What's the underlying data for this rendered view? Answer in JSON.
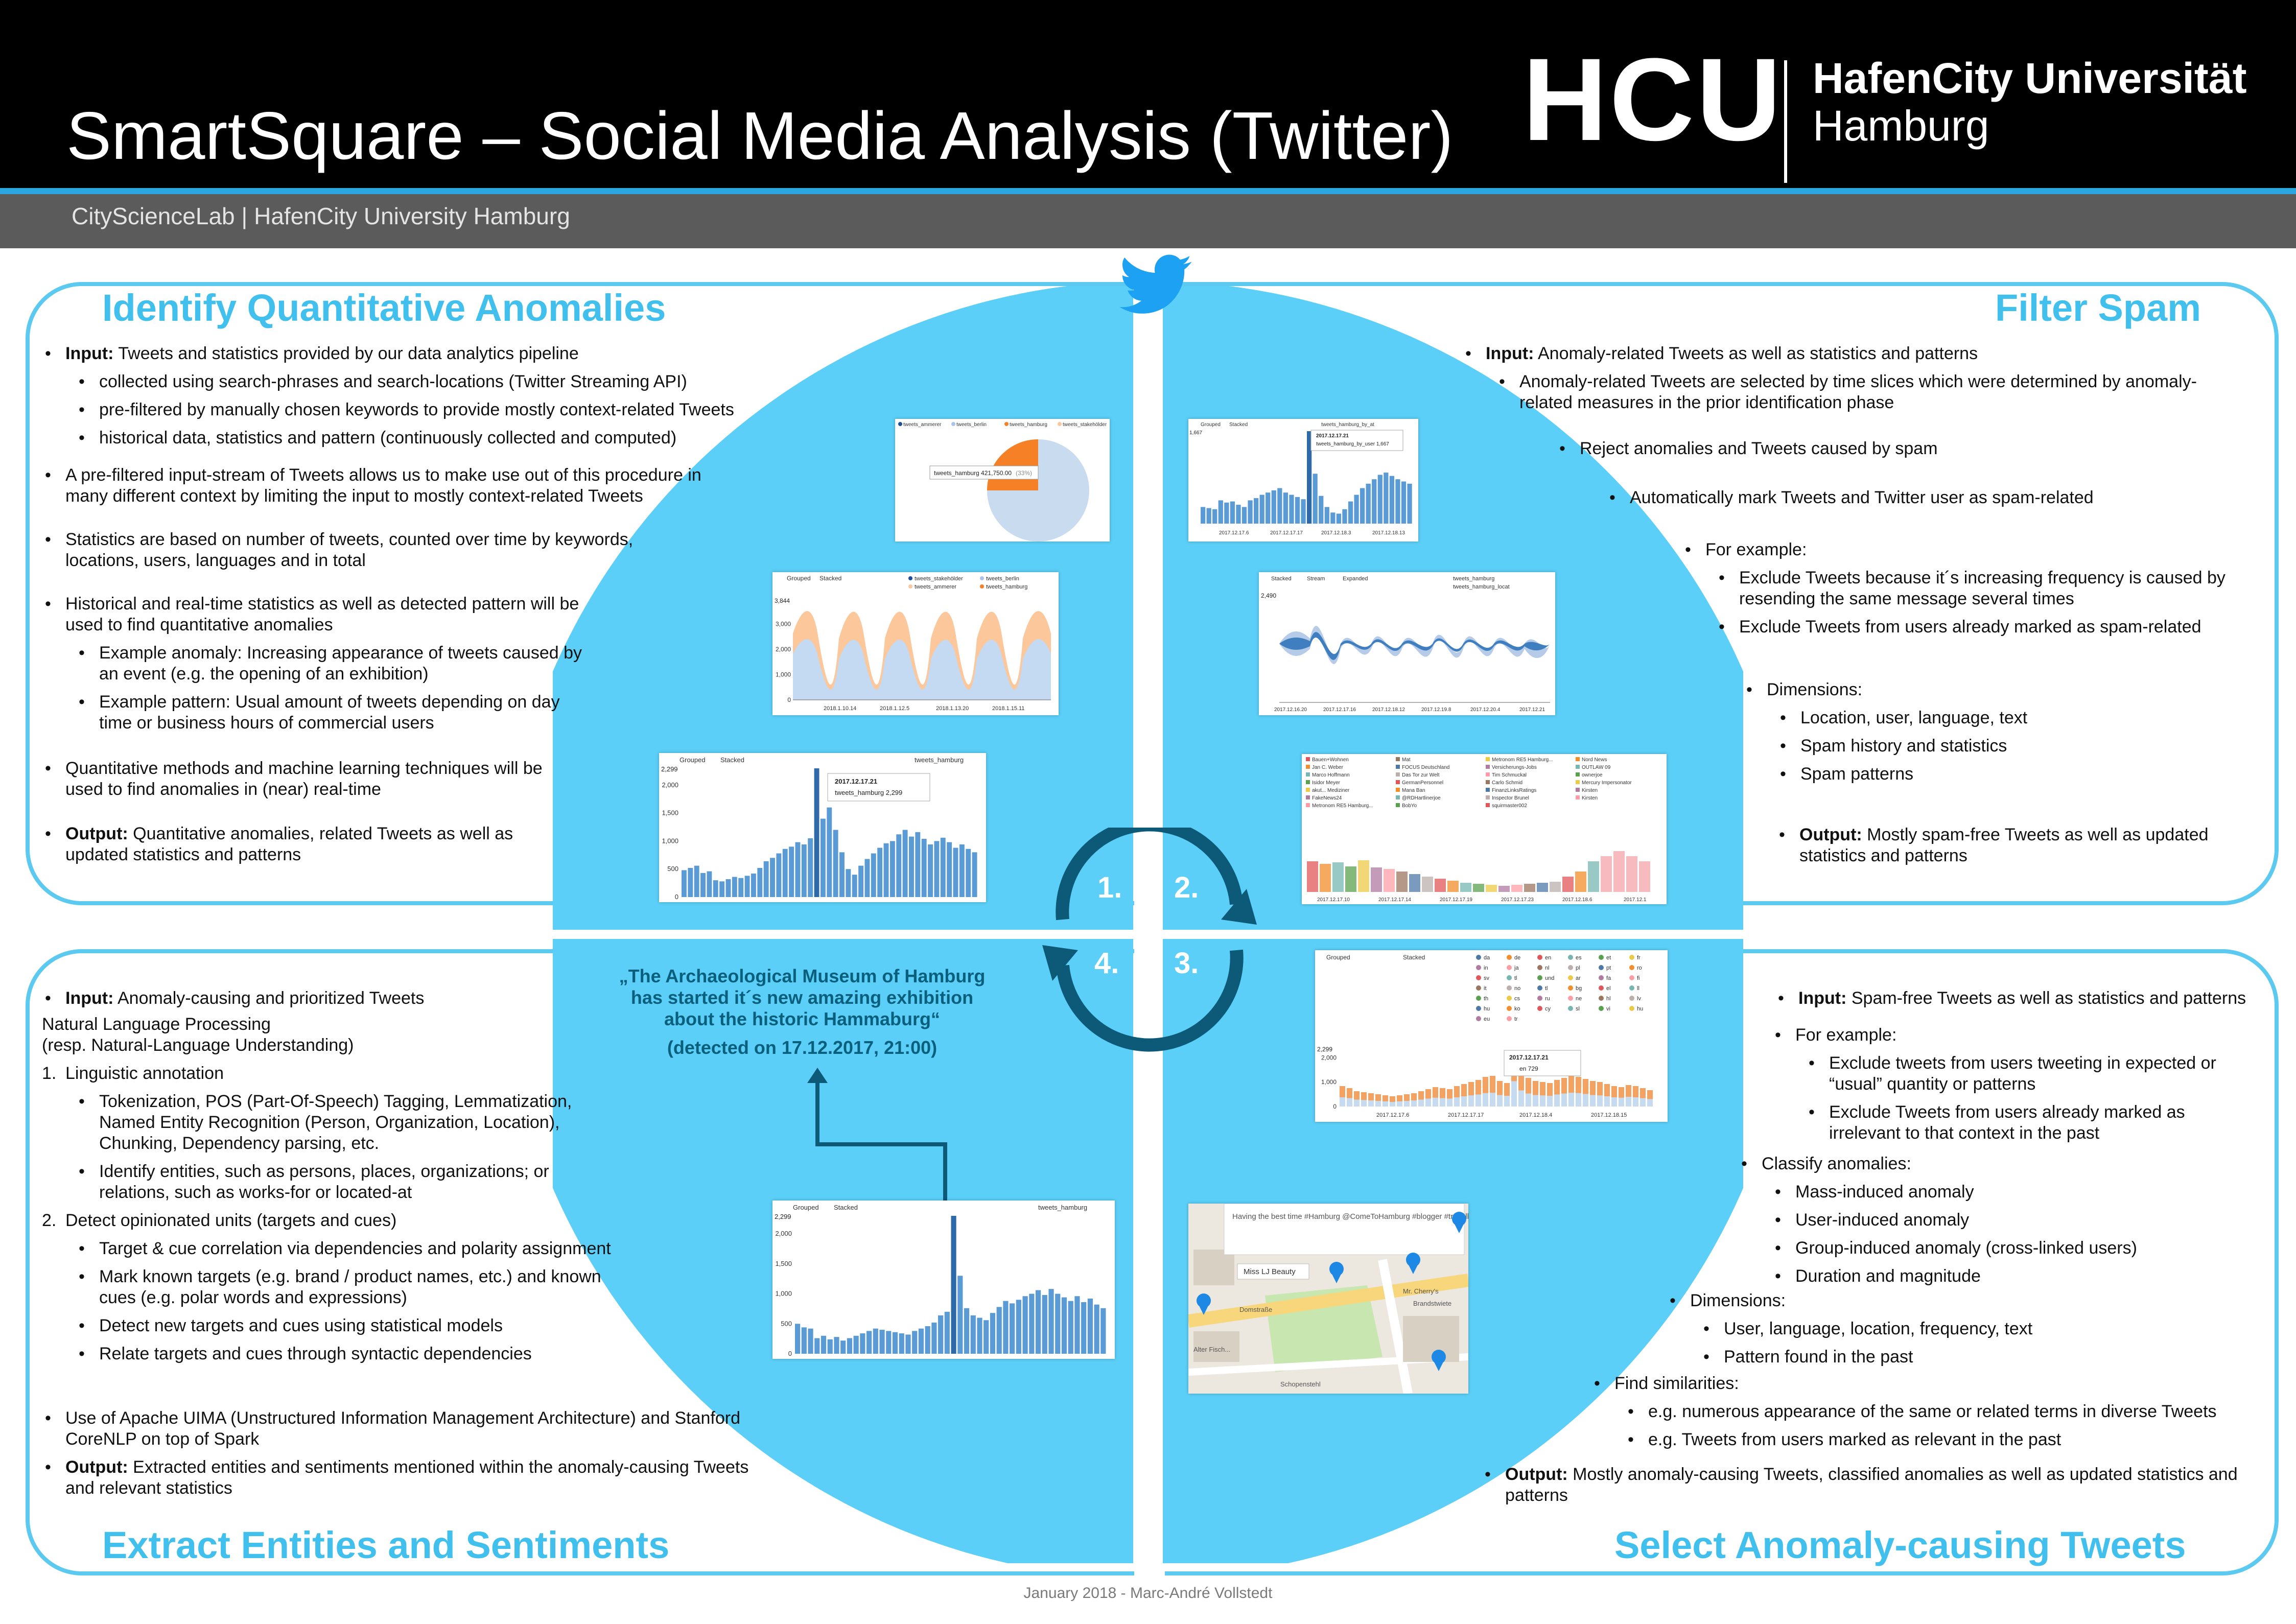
{
  "header": {
    "title": "SmartSquare – Social Media Analysis (Twitter)",
    "subtitle": "CityScienceLab | HafenCity University Hamburg",
    "logo_short": "HCU",
    "logo_line1": "HafenCity Universität",
    "logo_line2": "Hamburg"
  },
  "colors": {
    "accent": "#42c0ed",
    "circle": "#5bcff7",
    "dark_arrow": "#0c5a78",
    "header_bg": "#000000",
    "subbar_bg": "#5b5b5b"
  },
  "icons": {
    "brand": "twitter-bird-icon"
  },
  "q1": {
    "title": "Identify Quantitative Anomalies",
    "input_label": "Input:",
    "input_text": "Tweets and statistics provided by our data analytics pipeline",
    "sub1": "collected using search-phrases and search-locations (Twitter Streaming API)",
    "sub2": "pre-filtered by manually chosen keywords to provide mostly context-related Tweets",
    "sub3": "historical data, statistics and pattern (continuously collected and computed)",
    "p2": "A pre-filtered input-stream of Tweets allows us to make use out of this procedure in many different context by limiting the input to mostly context-related Tweets",
    "p3": "Statistics are based on number of tweets, counted over time by keywords, locations, users, languages and in total",
    "p4": "Historical and real-time statistics as well as detected pattern will be used to find quantitative anomalies",
    "p4a": "Example anomaly: Increasing appearance of tweets caused by an event (e.g. the opening of an exhibition)",
    "p4b": "Example pattern: Usual amount of tweets depending on day time or business hours of commercial users",
    "p5": "Quantitative methods and machine learning techniques will be used to find anomalies in (near) real-time",
    "output_label": "Output:",
    "output_text": "Quantitative anomalies, related Tweets as well as updated statistics and patterns"
  },
  "q2": {
    "title": "Filter Spam",
    "input_label": "Input:",
    "input_text": "Anomaly-related Tweets as well as statistics and patterns",
    "sub1": "Anomaly-related Tweets are selected by time slices which were determined by anomaly-related measures in the prior identification phase",
    "p2": "Reject anomalies and Tweets caused by spam",
    "p3": "Automatically mark Tweets and Twitter user as spam-related",
    "p4": "For example:",
    "p4a": "Exclude Tweets because it´s increasing frequency is caused by resending the same message several times",
    "p4b": "Exclude Tweets from users already marked as spam-related",
    "p5": "Dimensions:",
    "p5a": "Location, user, language, text",
    "p5b": "Spam history and statistics",
    "p5c": "Spam patterns",
    "output_label": "Output:",
    "output_text": "Mostly spam-free Tweets as well as updated statistics and patterns"
  },
  "q3": {
    "title": "Select Anomaly-causing Tweets",
    "input_label": "Input:",
    "input_text": "Spam-free Tweets as well as statistics and patterns",
    "p2": "For example:",
    "p2a": "Exclude tweets from users tweeting in expected or “usual” quantity or patterns",
    "p2b": "Exclude Tweets from users already marked as irrelevant to that context in the past",
    "p3": "Classify anomalies:",
    "p3a": "Mass-induced anomaly",
    "p3b": "User-induced anomaly",
    "p3c": "Group-induced anomaly (cross-linked users)",
    "p3d": "Duration and magnitude",
    "p4": "Dimensions:",
    "p4a": "User, language, location, frequency, text",
    "p4b": "Pattern found in the past",
    "p5": "Find similarities:",
    "p5a": "e.g. numerous appearance of the same or related terms in diverse Tweets",
    "p5b": "e.g. Tweets from users marked as relevant in the past",
    "output_label": "Output:",
    "output_text": "Mostly anomaly-causing Tweets, classified anomalies as well as updated statistics and patterns"
  },
  "q4": {
    "title": "Extract Entities and Sentiments",
    "input_label": "Input:",
    "input_text": "Anomaly-causing and prioritized Tweets",
    "nlp1": "Natural Language Processing",
    "nlp2": "(resp. Natural-Language Understanding)",
    "n1": "Linguistic annotation",
    "n1a": "Tokenization, POS (Part-Of-Speech) Tagging, Lemmatization, Named Entity Recognition (Person, Organization, Location), Chunking, Dependency parsing, etc.",
    "n1b": "Identify entities, such as persons, places, organizations; or relations, such as works-for or located-at",
    "n2": "Detect opinionated units (targets and cues)",
    "n2a": "Target & cue correlation via dependencies and polarity assignment",
    "n2b": "Mark known targets (e.g. brand / product names, etc.) and known cues (e.g. polar words and expressions)",
    "n2c": "Detect new targets and cues using statistical models",
    "n2d": "Relate targets and cues through syntactic dependencies",
    "p3": "Use of Apache UIMA (Unstructured Information Management Architecture) and Stanford CoreNLP on top of Spark",
    "output_label": "Output:",
    "output_text": "Extracted entities and sentiments mentioned within the anomaly-causing Tweets and relevant statistics"
  },
  "steps": {
    "s1": "1.",
    "s2": "2.",
    "s3": "3.",
    "s4": "4."
  },
  "quote": {
    "line1": "„The Archaeological Museum of Hamburg",
    "line2": "has started it´s new amazing exhibition",
    "line3": "about the historic Hammaburg“",
    "detected": "(detected on 17.12.2017, 21:00)"
  },
  "charts": {
    "pie": {
      "legend": [
        "tweets_ammerer",
        "tweets_berlin",
        "tweets_hamburg",
        "tweets_stakehölder"
      ],
      "tooltip": "tweets_hamburg  421,750.00",
      "tooltip_pct": "(33%)"
    },
    "area_top": {
      "legend_grouped": "Grouped",
      "legend_stacked": "Stacked",
      "series": [
        "tweets_stakehölder",
        "tweets_berlin",
        "tweets_ammerer",
        "tweets_hamburg"
      ],
      "ymax": "3,844",
      "yticks": [
        "3,000",
        "2,000",
        "1,000",
        "0"
      ],
      "xticks": [
        "2018.1.10.14",
        "2018.1.12.5",
        "2018.1.13.20",
        "2018.1.15.11"
      ]
    },
    "bar_q1": {
      "legend_grouped": "Grouped",
      "legend_stacked": "Stacked",
      "series": "tweets_hamburg",
      "ymax": "2,299",
      "yticks": [
        "2,000",
        "1,500",
        "1,000",
        "500",
        "0"
      ],
      "tooltip_date": "2017.12.17.21",
      "tooltip_value": "tweets_hamburg  2,299",
      "values": [
        480,
        520,
        560,
        430,
        460,
        300,
        280,
        320,
        360,
        340,
        380,
        420,
        520,
        640,
        700,
        780,
        860,
        900,
        980,
        940,
        1050,
        2299,
        1400,
        1600,
        1200,
        800,
        500,
        400,
        560,
        680,
        780,
        880,
        960,
        1000,
        1120,
        1200,
        1080,
        1160,
        1040,
        940,
        1000,
        1060,
        980,
        880,
        940,
        860,
        800
      ]
    },
    "spam_bar": {
      "legend_grouped": "Grouped",
      "legend_stacked": "Stacked",
      "series": "tweets_hamburg_by_at",
      "ymax": "1,667",
      "tooltip_date": "2017.12.17.21",
      "tooltip_value": "tweets_hamburg_by_user  1,667",
      "xticks": [
        "2017.12.17.6",
        "2017.12.17.17",
        "2017.12.18.3",
        "2017.12.18.13"
      ],
      "values": [
        300,
        280,
        260,
        420,
        380,
        400,
        340,
        300,
        420,
        460,
        520,
        560,
        600,
        640,
        560,
        520,
        480,
        440,
        1667,
        900,
        500,
        300,
        200,
        180,
        260,
        400,
        520,
        640,
        720,
        800,
        880,
        920,
        860,
        800,
        760,
        720
      ]
    },
    "stream": {
      "legend": [
        "Stacked",
        "Stream",
        "Expanded"
      ],
      "series": [
        "tweets_hamburg",
        "tweets_hamburg_locat"
      ],
      "ymax": "2,490",
      "xticks": [
        "2017.12.16.20",
        "2017.12.17.16",
        "2017.12.18.12",
        "2017.12.19.8",
        "2017.12.20.4",
        "2017.12.21"
      ]
    },
    "users_bar": {
      "users": [
        "Bauen+Wohnen",
        "Jan C. Weber",
        "Marco Hoffmann",
        "Isidor Meyer",
        "akut... Mediziner",
        "FakeNews24",
        "Metronom RE5 Hamburg...",
        "Mat",
        "FOCUS Deutschland",
        "Das Tor zur Welt",
        "GermanPersonnel",
        "Mana Ban",
        "@RDHartlinerjoe",
        "BobYo",
        "Metronom RE5 Hamburg...",
        "Versicherungs-Jobs",
        "Tim Schmuckal",
        "Carlo Schmid",
        "FinanzLinksRatings",
        "Inspector Brunel",
        "squirmaster002",
        "Nord News",
        "OUTLAW 09",
        "ownerjoe",
        "Mercury Impersonator",
        "Kirsten",
        "Kirsten"
      ],
      "xticks": [
        "2017.12.17.10",
        "2017.12.17.14",
        "2017.12.17.19",
        "2017.12.17.23",
        "2017.12.18.6",
        "2017.12.1"
      ]
    },
    "lang_bar": {
      "legend_grouped": "Grouped",
      "legend_stacked": "Stacked",
      "languages": [
        "da",
        "de",
        "en",
        "es",
        "et",
        "fr",
        "in",
        "ja",
        "nl",
        "pl",
        "pt",
        "ro",
        "sv",
        "tl",
        "und",
        "ar",
        "fa",
        "fi",
        "it",
        "no",
        "tl",
        "bg",
        "el",
        "ll",
        "th",
        "cs",
        "ru",
        "ne",
        "hl",
        "lv",
        "hu",
        "ko",
        "cy",
        "sl",
        "vi",
        "hu",
        "eu",
        "tr"
      ],
      "ymax": "2,299",
      "yticks": [
        "2,000",
        "1,000",
        "0"
      ],
      "tooltip_date": "2017.12.17.21",
      "tooltip_value": "en  729",
      "xticks": [
        "2017.12.17.6",
        "2017.12.17.17",
        "2017.12.18.4",
        "2017.12.18.15"
      ]
    },
    "map": {
      "popup_text": "Having the best time #Hamburg @ComeToHamburg #blogger #travelblogger #blogpostcome #beer… https://t.co/dDXOLIXEiD",
      "popup_user": "Miss LJ Beauty",
      "streets": [
        "Domstraße",
        "Schopenstehl",
        "Brandstwiete",
        "Alter Fisch...",
        "Mr. Cherry's"
      ]
    },
    "bar_q4": {
      "legend_grouped": "Grouped",
      "legend_stacked": "Stacked",
      "series": "tweets_hamburg",
      "ymax": "2,299",
      "yticks": [
        "2,000",
        "1,500",
        "1,000",
        "500",
        "0"
      ],
      "values": [
        500,
        440,
        420,
        260,
        300,
        240,
        280,
        220,
        260,
        300,
        340,
        380,
        420,
        400,
        380,
        360,
        340,
        320,
        380,
        420,
        460,
        520,
        640,
        700,
        2299,
        1300,
        760,
        640,
        600,
        560,
        680,
        780,
        880,
        840,
        900,
        960,
        1000,
        1060,
        980,
        1080,
        1000,
        940,
        880,
        960,
        860,
        920,
        820,
        760
      ]
    }
  },
  "footer": "January 2018 - Marc-André Vollstedt"
}
